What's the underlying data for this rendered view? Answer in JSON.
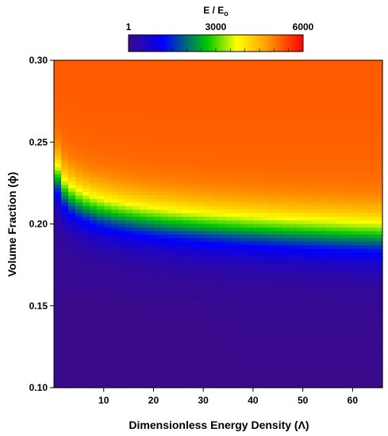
{
  "chart_data": {
    "type": "heatmap",
    "xlabel": "Dimensionless Energy Density (Λ)",
    "ylabel": "Volume Fraction (ϕ)",
    "xlim": [
      0,
      66
    ],
    "ylim": [
      0.1,
      0.3
    ],
    "x_ticks": [
      "10",
      "20",
      "30",
      "40",
      "50",
      "60"
    ],
    "x_tick_values": [
      10,
      20,
      30,
      40,
      50,
      60
    ],
    "y_ticks": [
      "0.10",
      "0.15",
      "0.20",
      "0.25",
      "0.30"
    ],
    "y_tick_values": [
      0.1,
      0.15,
      0.2,
      0.25,
      0.3
    ],
    "colorbar": {
      "title_main": "E / E",
      "title_sub": "o",
      "min": 1,
      "max": 6000,
      "tick_labels": [
        "1",
        "3000",
        "6000"
      ],
      "tick_values": [
        1,
        3000,
        6000
      ],
      "colors": [
        "#3a0a8c",
        "#0000ff",
        "#00c800",
        "#ffff00",
        "#ffa500",
        "#ff0000"
      ]
    },
    "grid": false,
    "description_of_field": "E/Eo increases with volume fraction; transition band (green-yellow) at phi about 0.225 at low Lambda, decreasing to about 0.205 at Lambda 66; red saturation above phi about 0.25"
  }
}
